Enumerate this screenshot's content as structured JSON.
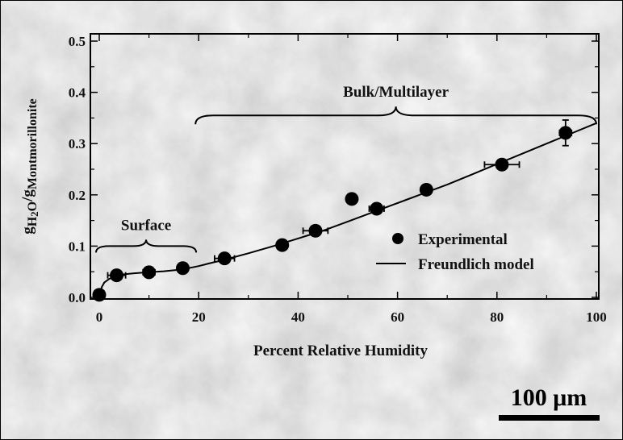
{
  "chart_data": {
    "type": "scatter",
    "xlabel": "Percent Relative Humidity",
    "ylabel": {
      "g1": "g",
      "sub1": "H",
      "sub2": "2",
      "mid": "O",
      "slash": "/",
      "g2": "g",
      "sub3": "Montmorillonite"
    },
    "xlim": [
      0,
      100
    ],
    "ylim": [
      0,
      0.5
    ],
    "x_ticks": [
      "0",
      "20",
      "40",
      "60",
      "80",
      "100"
    ],
    "x_tick_values": [
      0,
      20,
      40,
      60,
      80,
      100
    ],
    "y_ticks": [
      "0.0",
      "0.1",
      "0.2",
      "0.3",
      "0.4",
      "0.5"
    ],
    "y_tick_values": [
      0,
      0.1,
      0.2,
      0.3,
      0.4,
      0.5
    ],
    "series": [
      {
        "name": "Experimental",
        "points": [
          {
            "x": 0,
            "y": 0.005,
            "xerr": 0,
            "yerr": 0
          },
          {
            "x": 3.5,
            "y": 0.043,
            "xerr": 1.8,
            "yerr": 0.004
          },
          {
            "x": 10,
            "y": 0.049,
            "xerr": 1.2,
            "yerr": 0.003
          },
          {
            "x": 16.8,
            "y": 0.057,
            "xerr": 0,
            "yerr": 0
          },
          {
            "x": 25.2,
            "y": 0.076,
            "xerr": 2.0,
            "yerr": 0
          },
          {
            "x": 36.8,
            "y": 0.102,
            "xerr": 0,
            "yerr": 0
          },
          {
            "x": 43.5,
            "y": 0.13,
            "xerr": 2.5,
            "yerr": 0.01
          },
          {
            "x": 50.8,
            "y": 0.192,
            "xerr": 0,
            "yerr": 0
          },
          {
            "x": 55.8,
            "y": 0.173,
            "xerr": 1.5,
            "yerr": 0
          },
          {
            "x": 65.8,
            "y": 0.21,
            "xerr": 0,
            "yerr": 0
          },
          {
            "x": 81,
            "y": 0.259,
            "xerr": 3.5,
            "yerr": 0.01
          },
          {
            "x": 93.8,
            "y": 0.321,
            "xerr": 1.2,
            "yerr": 0.025
          }
        ]
      },
      {
        "name": "Freundlich model",
        "x": [
          0,
          0.5,
          1,
          2,
          3,
          4,
          5,
          7,
          10,
          13,
          16,
          18,
          20,
          22,
          25,
          30,
          35,
          40,
          45,
          50,
          55,
          60,
          65,
          70,
          75,
          80,
          85,
          90,
          95,
          100
        ],
        "y": [
          0.0,
          0.02,
          0.029,
          0.036,
          0.04,
          0.043,
          0.045,
          0.047,
          0.049,
          0.051,
          0.054,
          0.057,
          0.061,
          0.066,
          0.073,
          0.086,
          0.1,
          0.115,
          0.13,
          0.148,
          0.166,
          0.184,
          0.202,
          0.22,
          0.24,
          0.26,
          0.28,
          0.3,
          0.32,
          0.34
        ]
      }
    ],
    "annotations": [
      {
        "text": "Surface",
        "brace_x": [
          0,
          19.5
        ],
        "brace_y": 0.1
      },
      {
        "text": "Bulk/Multilayer",
        "brace_x": [
          20,
          100
        ],
        "brace_y": 0.355
      }
    ],
    "legend": {
      "position": "bottom-right",
      "items": [
        "Experimental",
        "Freundlich model"
      ]
    },
    "scale_bar": {
      "label": "100 μm"
    },
    "background": "grayscale micrograph of montmorillonite",
    "colors": {
      "marker": "#000000",
      "line": "#000000",
      "background": "#d6d6d6"
    }
  }
}
